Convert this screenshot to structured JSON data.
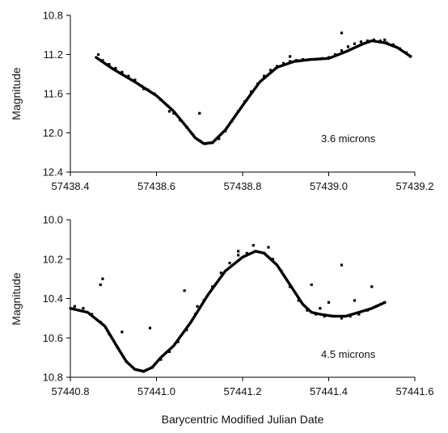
{
  "chart_data": [
    {
      "type": "scatter",
      "ylabel": "Magnitude",
      "xlabel": "",
      "annotation": "3.6 microns",
      "xlim": [
        57438.4,
        57439.2
      ],
      "ylim": [
        10.8,
        12.4
      ],
      "y_reversed": true,
      "xticks": [
        57438.4,
        57438.6,
        57438.8,
        57439.0,
        57439.2
      ],
      "xtick_labels": [
        "57438.4",
        "57438.6",
        "57438.8",
        "57439.0",
        "57439.2"
      ],
      "yticks": [
        10.8,
        11.2,
        11.6,
        12.0,
        12.4
      ],
      "ytick_labels": [
        "10.8",
        "11.2",
        "11.6",
        "12.0",
        "12.4"
      ],
      "grid": false,
      "series": [
        {
          "style": "fit-line",
          "x": [
            57438.46,
            57438.5,
            57438.55,
            57438.6,
            57438.64,
            57438.67,
            57438.69,
            57438.71,
            57438.73,
            57438.76,
            57438.8,
            57438.84,
            57438.88,
            57438.92,
            57438.96,
            57439.0,
            57439.04,
            57439.08,
            57439.1,
            57439.13,
            57439.16,
            57439.19
          ],
          "y": [
            11.23,
            11.35,
            11.48,
            11.62,
            11.78,
            11.94,
            12.05,
            12.11,
            12.1,
            11.97,
            11.72,
            11.48,
            11.33,
            11.27,
            11.25,
            11.24,
            11.17,
            11.09,
            11.06,
            11.08,
            11.13,
            11.22
          ]
        },
        {
          "style": "points",
          "x": [
            57438.465,
            57438.475,
            57438.49,
            57438.505,
            57438.52,
            57438.535,
            57438.55,
            57438.565,
            57438.58,
            57438.595,
            57438.61,
            57438.625,
            57438.64,
            57438.655,
            57438.67,
            57438.685,
            57438.7,
            57438.715,
            57438.73,
            57438.745,
            57438.76,
            57438.775,
            57438.79,
            57438.805,
            57438.82,
            57438.835,
            57438.85,
            57438.865,
            57438.88,
            57438.895,
            57438.91,
            57438.925,
            57438.94,
            57438.955,
            57438.97,
            57438.985,
            57439.0,
            57439.015,
            57439.03,
            57439.045,
            57439.06,
            57439.075,
            57439.09,
            57439.105,
            57439.12,
            57439.135,
            57439.15,
            57439.165,
            57439.18,
            57439.19,
            57438.7,
            57438.63,
            57438.91,
            57439.03,
            57438.57,
            57439.13
          ],
          "y": [
            11.2,
            11.26,
            11.3,
            11.34,
            11.38,
            11.42,
            11.46,
            11.52,
            11.56,
            11.6,
            11.66,
            11.72,
            11.8,
            11.87,
            11.94,
            12.02,
            12.08,
            12.11,
            12.1,
            12.06,
            11.98,
            11.88,
            11.78,
            11.68,
            11.58,
            11.5,
            11.42,
            11.36,
            11.32,
            11.29,
            11.27,
            11.26,
            11.25,
            11.25,
            11.25,
            11.24,
            11.23,
            11.2,
            11.16,
            11.12,
            11.09,
            11.07,
            11.06,
            11.05,
            11.06,
            11.08,
            11.1,
            11.14,
            11.18,
            11.22,
            11.8,
            11.78,
            11.22,
            10.98,
            11.55,
            11.05
          ]
        }
      ]
    },
    {
      "type": "scatter",
      "ylabel": "Magnitude",
      "xlabel": "Barycentric Modified Julian Date",
      "annotation": "4.5 microns",
      "xlim": [
        57440.8,
        57441.6
      ],
      "ylim": [
        10.0,
        10.8
      ],
      "y_reversed": true,
      "xticks": [
        57440.8,
        57441.0,
        57441.2,
        57441.4,
        57441.6
      ],
      "xtick_labels": [
        "57440.8",
        "57441.0",
        "57441.2",
        "57441.4",
        "57441.6"
      ],
      "yticks": [
        10.0,
        10.2,
        10.4,
        10.6,
        10.8
      ],
      "ytick_labels": [
        "10.0",
        "10.2",
        "10.4",
        "10.6",
        "10.8"
      ],
      "grid": false,
      "series": [
        {
          "style": "fit-line",
          "x": [
            57440.8,
            57440.84,
            57440.88,
            57440.91,
            57440.93,
            57440.95,
            57440.97,
            57440.99,
            57441.01,
            57441.04,
            57441.08,
            57441.12,
            57441.16,
            57441.2,
            57441.23,
            57441.25,
            57441.28,
            57441.31,
            57441.34,
            57441.36,
            57441.38,
            57441.41,
            57441.44,
            57441.47,
            57441.5,
            57441.53
          ],
          "y": [
            10.45,
            10.47,
            10.54,
            10.65,
            10.72,
            10.76,
            10.77,
            10.75,
            10.7,
            10.64,
            10.52,
            10.38,
            10.26,
            10.19,
            10.16,
            10.17,
            10.23,
            10.33,
            10.43,
            10.47,
            10.48,
            10.49,
            10.49,
            10.47,
            10.45,
            10.42
          ]
        },
        {
          "style": "points",
          "x": [
            57440.81,
            57440.83,
            57440.85,
            57440.87,
            57440.89,
            57440.91,
            57440.93,
            57440.95,
            57440.97,
            57440.99,
            57441.01,
            57441.03,
            57441.05,
            57441.07,
            57441.09,
            57441.11,
            57441.13,
            57441.15,
            57441.17,
            57441.19,
            57441.21,
            57441.23,
            57441.25,
            57441.27,
            57441.29,
            57441.31,
            57441.33,
            57441.35,
            57441.37,
            57441.39,
            57441.41,
            57441.43,
            57441.45,
            57441.47,
            57441.49,
            57441.51,
            57441.53,
            57440.875,
            57440.87,
            57440.92,
            57440.985,
            57441.065,
            57441.095,
            57441.19,
            57441.225,
            57441.26,
            57441.36,
            57441.4,
            57441.43,
            57441.46,
            57441.5,
            57441.38
          ],
          "y": [
            10.44,
            10.45,
            10.48,
            10.52,
            10.58,
            10.65,
            10.72,
            10.76,
            10.77,
            10.75,
            10.71,
            10.67,
            10.62,
            10.56,
            10.48,
            10.41,
            10.34,
            10.27,
            10.22,
            10.18,
            10.17,
            10.16,
            10.17,
            10.2,
            10.26,
            10.34,
            10.41,
            10.46,
            10.48,
            10.49,
            10.49,
            10.5,
            10.49,
            10.48,
            10.46,
            10.44,
            10.42,
            10.3,
            10.33,
            10.57,
            10.55,
            10.36,
            10.44,
            10.16,
            10.13,
            10.14,
            10.33,
            10.42,
            10.23,
            10.41,
            10.34,
            10.45
          ]
        }
      ]
    }
  ]
}
